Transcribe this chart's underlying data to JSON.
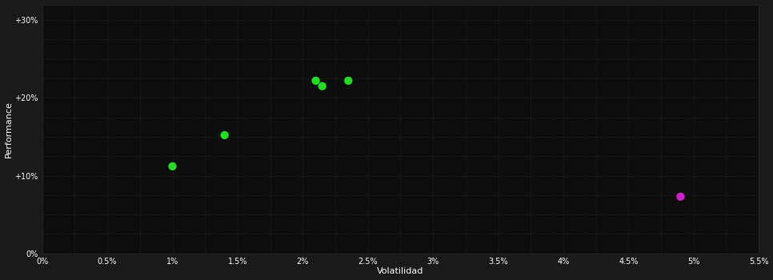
{
  "background_color": "#1a1a1a",
  "plot_bg_color": "#0d0d0d",
  "grid_color": "#333333",
  "text_color": "#ffffff",
  "xlabel": "Volatilidad",
  "ylabel": "Performance",
  "xticks_major": [
    0.0,
    0.005,
    0.01,
    0.015,
    0.02,
    0.025,
    0.03,
    0.035,
    0.04,
    0.045,
    0.05,
    0.055
  ],
  "xtick_labels": [
    "0%",
    "0.5%",
    "1%",
    "1.5%",
    "2%",
    "2.5%",
    "3%",
    "3.5%",
    "4%",
    "4.5%",
    "5%",
    "5.5%"
  ],
  "yticks_major": [
    0.0,
    0.1,
    0.2,
    0.3
  ],
  "ytick_labels": [
    "0%",
    "+10%",
    "+20%",
    "+30%"
  ],
  "yticks_minor": [
    0.025,
    0.05,
    0.075,
    0.125,
    0.15,
    0.175,
    0.225,
    0.25,
    0.275
  ],
  "xticks_minor": [
    0.0025,
    0.0075,
    0.0125,
    0.0175,
    0.0225,
    0.0275,
    0.0325,
    0.0375,
    0.0425,
    0.0475,
    0.0525
  ],
  "xlim": [
    0.0,
    0.055
  ],
  "ylim": [
    0.0,
    0.32
  ],
  "green_points": [
    [
      0.01,
      0.112
    ],
    [
      0.014,
      0.152
    ],
    [
      0.021,
      0.222
    ],
    [
      0.0215,
      0.215
    ],
    [
      0.0235,
      0.222
    ]
  ],
  "magenta_points": [
    [
      0.049,
      0.073
    ]
  ],
  "green_color": "#22dd22",
  "magenta_color": "#cc22cc",
  "marker_size": 55,
  "grid_linestyle": ":",
  "grid_linewidth": 0.6,
  "grid_alpha": 0.8,
  "label_fontsize": 8,
  "tick_fontsize": 7,
  "border_color": "#2a2a2a"
}
